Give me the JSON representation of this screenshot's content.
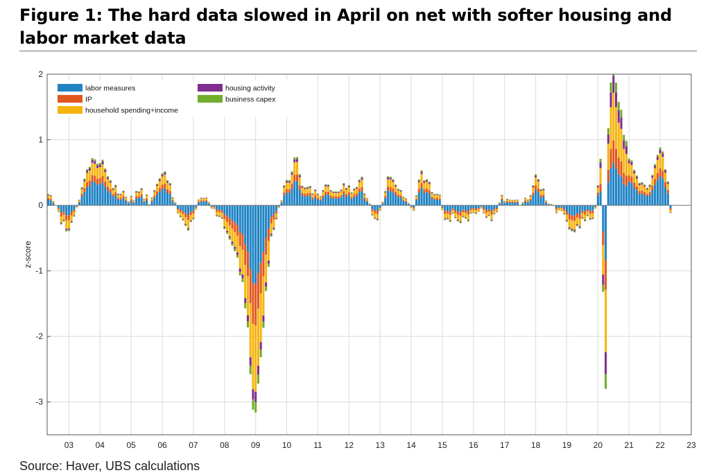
{
  "figure": {
    "title": "Figure 1: The hard data slowed in April on net with softer housing and labor market data",
    "source": "Source: Haver, UBS calculations"
  },
  "colors": {
    "labor": "#1f83c4",
    "ip": "#e2571e",
    "household": "#f6b40f",
    "housing": "#7e2f8e",
    "capex": "#72ad2c",
    "grid": "#dcdcdc",
    "axis": "#555555"
  },
  "chart_data": {
    "type": "bar",
    "stacked": true,
    "frequency": "monthly",
    "xlabel": "",
    "ylabel": "z-score",
    "ylim": [
      -3.5,
      2
    ],
    "xlim": [
      2002.3,
      2023.0
    ],
    "yticks": [
      2,
      1,
      0,
      -1,
      -2,
      -3
    ],
    "xticks": [
      "03",
      "04",
      "05",
      "06",
      "07",
      "08",
      "09",
      "10",
      "11",
      "12",
      "13",
      "14",
      "15",
      "16",
      "17",
      "18",
      "19",
      "20",
      "21",
      "22",
      "23"
    ],
    "legend": {
      "position": "top-left",
      "items": [
        {
          "key": "labor",
          "label": "labor measures"
        },
        {
          "key": "ip",
          "label": "IP"
        },
        {
          "key": "household",
          "label": "household spending+income"
        },
        {
          "key": "housing",
          "label": "housing activity"
        },
        {
          "key": "capex",
          "label": "business capex"
        }
      ]
    },
    "series_order": [
      "labor",
      "ip",
      "household",
      "housing",
      "capex"
    ],
    "shares": {
      "pos": {
        "labor": 0.5,
        "ip": 0.14,
        "household": 0.26,
        "housing": 0.06,
        "capex": 0.04
      },
      "neg": {
        "labor": 0.38,
        "ip": 0.2,
        "household": 0.32,
        "housing": 0.05,
        "capex": 0.05
      },
      "pandemic": {
        "labor": 0.3,
        "ip": 0.16,
        "household": 0.34,
        "housing": 0.12,
        "capex": 0.08
      }
    },
    "total_keyframes": [
      [
        2002.3,
        0.25
      ],
      [
        2002.5,
        0.05
      ],
      [
        2002.7,
        -0.2
      ],
      [
        2003.0,
        -0.45
      ],
      [
        2003.2,
        -0.15
      ],
      [
        2003.5,
        0.4
      ],
      [
        2003.8,
        0.7
      ],
      [
        2004.1,
        0.6
      ],
      [
        2004.3,
        0.35
      ],
      [
        2004.6,
        0.2
      ],
      [
        2005.0,
        0.1
      ],
      [
        2005.3,
        0.22
      ],
      [
        2005.6,
        0.05
      ],
      [
        2005.8,
        0.3
      ],
      [
        2006.1,
        0.55
      ],
      [
        2006.3,
        0.2
      ],
      [
        2006.5,
        -0.1
      ],
      [
        2006.8,
        -0.35
      ],
      [
        2007.0,
        -0.2
      ],
      [
        2007.2,
        0.1
      ],
      [
        2007.5,
        0.05
      ],
      [
        2007.8,
        -0.15
      ],
      [
        2008.1,
        -0.4
      ],
      [
        2008.4,
        -0.75
      ],
      [
        2008.6,
        -1.2
      ],
      [
        2008.75,
        -1.9
      ],
      [
        2008.85,
        -2.7
      ],
      [
        2008.95,
        -3.4
      ],
      [
        2009.1,
        -2.7
      ],
      [
        2009.3,
        -1.5
      ],
      [
        2009.5,
        -0.5
      ],
      [
        2009.7,
        -0.2
      ],
      [
        2009.9,
        0.3
      ],
      [
        2010.1,
        0.45
      ],
      [
        2010.3,
        0.8
      ],
      [
        2010.5,
        0.35
      ],
      [
        2010.8,
        0.25
      ],
      [
        2011.0,
        0.15
      ],
      [
        2011.3,
        0.3
      ],
      [
        2011.6,
        0.2
      ],
      [
        2011.9,
        0.3
      ],
      [
        2012.2,
        0.2
      ],
      [
        2012.4,
        0.4
      ],
      [
        2012.6,
        0.05
      ],
      [
        2012.9,
        -0.25
      ],
      [
        2013.1,
        0.15
      ],
      [
        2013.3,
        0.5
      ],
      [
        2013.6,
        0.2
      ],
      [
        2013.9,
        0.1
      ],
      [
        2014.1,
        -0.1
      ],
      [
        2014.3,
        0.5
      ],
      [
        2014.6,
        0.3
      ],
      [
        2014.9,
        0.15
      ],
      [
        2015.1,
        -0.25
      ],
      [
        2015.4,
        -0.15
      ],
      [
        2015.7,
        -0.25
      ],
      [
        2016.0,
        -0.15
      ],
      [
        2016.3,
        -0.1
      ],
      [
        2016.6,
        -0.2
      ],
      [
        2016.9,
        0.1
      ],
      [
        2017.2,
        0.15
      ],
      [
        2017.5,
        0.05
      ],
      [
        2017.8,
        0.15
      ],
      [
        2018.0,
        0.45
      ],
      [
        2018.3,
        0.15
      ],
      [
        2018.6,
        -0.05
      ],
      [
        2018.9,
        -0.1
      ],
      [
        2019.1,
        -0.45
      ],
      [
        2019.4,
        -0.3
      ],
      [
        2019.7,
        -0.2
      ],
      [
        2019.9,
        -0.15
      ],
      [
        2020.0,
        0.3
      ],
      [
        2020.1,
        0.9
      ],
      [
        2020.16,
        -1.2
      ],
      [
        2020.25,
        -2.8
      ],
      [
        2020.33,
        1.2
      ],
      [
        2020.42,
        1.9
      ],
      [
        2020.5,
        2.1
      ],
      [
        2020.6,
        1.9
      ],
      [
        2020.75,
        1.4
      ],
      [
        2020.92,
        0.9
      ],
      [
        2021.0,
        0.8
      ],
      [
        2021.2,
        0.5
      ],
      [
        2021.4,
        0.3
      ],
      [
        2021.6,
        0.25
      ],
      [
        2021.8,
        0.5
      ],
      [
        2022.0,
        0.9
      ],
      [
        2022.15,
        0.6
      ],
      [
        2022.25,
        0.3
      ],
      [
        2022.33,
        -0.1
      ]
    ]
  }
}
